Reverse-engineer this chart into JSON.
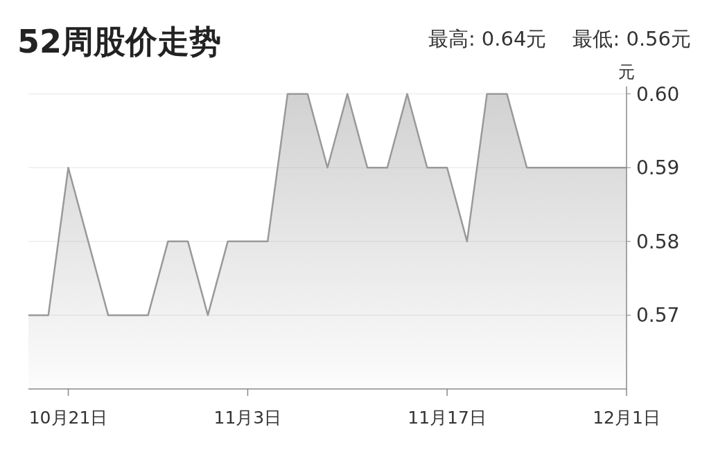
{
  "chart_data": {
    "type": "area",
    "title": "52周股价走势",
    "ylabel": "元",
    "annotations": [
      "最高: 0.64元",
      "最低: 0.56元"
    ],
    "categories": [
      null,
      null,
      "10月21日",
      null,
      null,
      null,
      null,
      null,
      null,
      null,
      null,
      "11月3日",
      null,
      null,
      null,
      null,
      null,
      null,
      null,
      null,
      null,
      "11月17日",
      null,
      null,
      null,
      null,
      null,
      null,
      null,
      null,
      "12月1日"
    ],
    "series": [
      {
        "color": "#999999",
        "values": [
          0.57,
          0.57,
          0.59,
          0.58,
          0.57,
          0.57,
          0.57,
          0.58,
          0.58,
          0.57,
          0.58,
          0.58,
          0.58,
          0.6,
          0.6,
          0.59,
          0.6,
          0.59,
          0.59,
          0.6,
          0.59,
          0.59,
          0.58,
          0.6,
          0.6,
          0.59,
          0.59,
          0.59,
          0.59,
          0.59,
          0.59
        ]
      }
    ],
    "ylim": [
      0.56,
      0.601
    ],
    "yticks": [
      0.57,
      0.58,
      0.59,
      {
        "value": 0.6,
        "label": "0.60"
      }
    ],
    "grid": "y"
  }
}
